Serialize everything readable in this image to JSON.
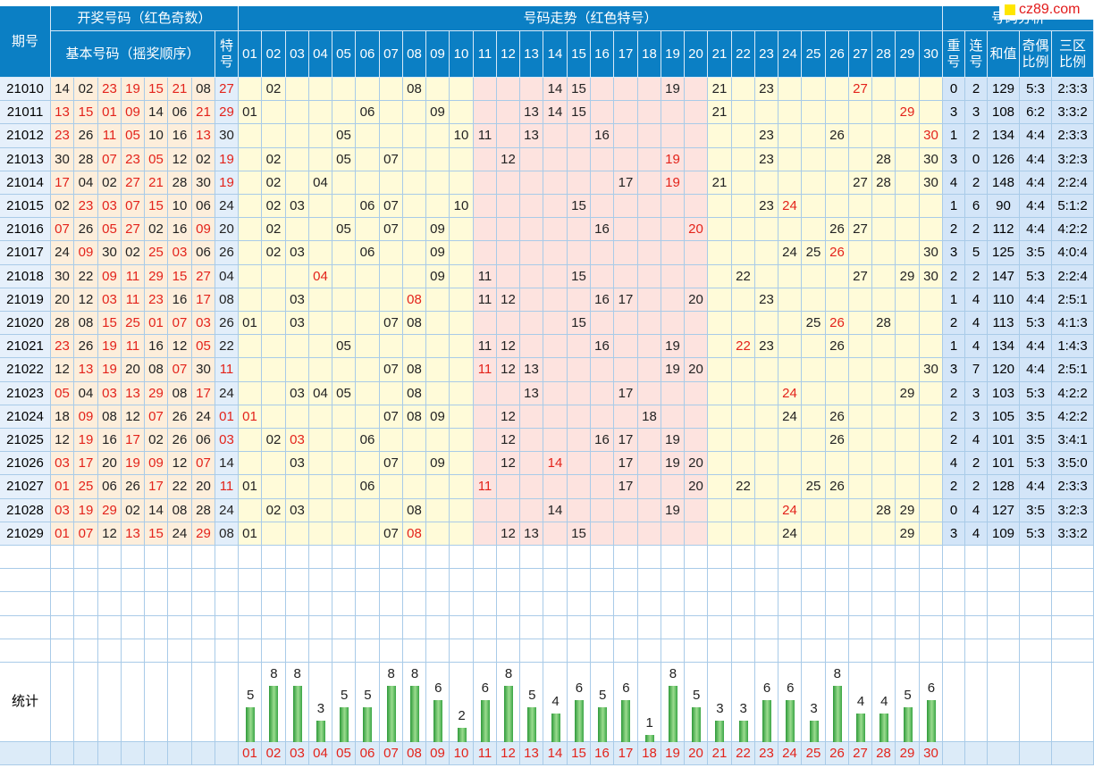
{
  "header": {
    "period": "期号",
    "draw": "开奖号码（红色奇数）",
    "basic": "基本号码（摇奖顺序）",
    "special": "特号",
    "trend": "号码走势（红色特号）",
    "analysis": "号码分析",
    "repeat": "重号",
    "consecutive": "连号",
    "sum": "和值",
    "odd_even": "奇偶比例",
    "zones": "三区比例",
    "numbers": [
      "01",
      "02",
      "03",
      "04",
      "05",
      "06",
      "07",
      "08",
      "09",
      "10",
      "11",
      "12",
      "13",
      "14",
      "15",
      "16",
      "17",
      "18",
      "19",
      "20",
      "21",
      "22",
      "23",
      "24",
      "25",
      "26",
      "27",
      "28",
      "29",
      "30"
    ]
  },
  "rows": [
    {
      "period": "21010",
      "basic": [
        "14",
        "02",
        "23",
        "19",
        "15",
        "21",
        "08"
      ],
      "special": "27",
      "repeat": 0,
      "consecutive": 2,
      "sum": 129,
      "odd_even": "5:3",
      "zones": "2:3:3"
    },
    {
      "period": "21011",
      "basic": [
        "13",
        "15",
        "01",
        "09",
        "14",
        "06",
        "21"
      ],
      "special": "29",
      "repeat": 3,
      "consecutive": 3,
      "sum": 108,
      "odd_even": "6:2",
      "zones": "3:3:2"
    },
    {
      "period": "21012",
      "basic": [
        "23",
        "26",
        "11",
        "05",
        "10",
        "16",
        "13"
      ],
      "special": "30",
      "repeat": 1,
      "consecutive": 2,
      "sum": 134,
      "odd_even": "4:4",
      "zones": "2:3:3"
    },
    {
      "period": "21013",
      "basic": [
        "30",
        "28",
        "07",
        "23",
        "05",
        "12",
        "02"
      ],
      "special": "19",
      "repeat": 3,
      "consecutive": 0,
      "sum": 126,
      "odd_even": "4:4",
      "zones": "3:2:3"
    },
    {
      "period": "21014",
      "basic": [
        "17",
        "04",
        "02",
        "27",
        "21",
        "28",
        "30"
      ],
      "special": "19",
      "repeat": 4,
      "consecutive": 2,
      "sum": 148,
      "odd_even": "4:4",
      "zones": "2:2:4"
    },
    {
      "period": "21015",
      "basic": [
        "02",
        "23",
        "03",
        "07",
        "15",
        "10",
        "06"
      ],
      "special": "24",
      "repeat": 1,
      "consecutive": 6,
      "sum": 90,
      "odd_even": "4:4",
      "zones": "5:1:2"
    },
    {
      "period": "21016",
      "basic": [
        "07",
        "26",
        "05",
        "27",
        "02",
        "16",
        "09"
      ],
      "special": "20",
      "repeat": 2,
      "consecutive": 2,
      "sum": 112,
      "odd_even": "4:4",
      "zones": "4:2:2"
    },
    {
      "period": "21017",
      "basic": [
        "24",
        "09",
        "30",
        "02",
        "25",
        "03",
        "06"
      ],
      "special": "26",
      "repeat": 3,
      "consecutive": 5,
      "sum": 125,
      "odd_even": "3:5",
      "zones": "4:0:4"
    },
    {
      "period": "21018",
      "basic": [
        "30",
        "22",
        "09",
        "11",
        "29",
        "15",
        "27"
      ],
      "special": "04",
      "repeat": 2,
      "consecutive": 2,
      "sum": 147,
      "odd_even": "5:3",
      "zones": "2:2:4"
    },
    {
      "period": "21019",
      "basic": [
        "20",
        "12",
        "03",
        "11",
        "23",
        "16",
        "17"
      ],
      "special": "08",
      "repeat": 1,
      "consecutive": 4,
      "sum": 110,
      "odd_even": "4:4",
      "zones": "2:5:1"
    },
    {
      "period": "21020",
      "basic": [
        "28",
        "08",
        "15",
        "25",
        "01",
        "07",
        "03"
      ],
      "special": "26",
      "repeat": 2,
      "consecutive": 4,
      "sum": 113,
      "odd_even": "5:3",
      "zones": "4:1:3"
    },
    {
      "period": "21021",
      "basic": [
        "23",
        "26",
        "19",
        "11",
        "16",
        "12",
        "05"
      ],
      "special": "22",
      "repeat": 1,
      "consecutive": 4,
      "sum": 134,
      "odd_even": "4:4",
      "zones": "1:4:3"
    },
    {
      "period": "21022",
      "basic": [
        "12",
        "13",
        "19",
        "20",
        "08",
        "07",
        "30"
      ],
      "special": "11",
      "repeat": 3,
      "consecutive": 7,
      "sum": 120,
      "odd_even": "4:4",
      "zones": "2:5:1"
    },
    {
      "period": "21023",
      "basic": [
        "05",
        "04",
        "03",
        "13",
        "29",
        "08",
        "17"
      ],
      "special": "24",
      "repeat": 2,
      "consecutive": 3,
      "sum": 103,
      "odd_even": "5:3",
      "zones": "4:2:2"
    },
    {
      "period": "21024",
      "basic": [
        "18",
        "09",
        "08",
        "12",
        "07",
        "26",
        "24"
      ],
      "special": "01",
      "repeat": 2,
      "consecutive": 3,
      "sum": 105,
      "odd_even": "3:5",
      "zones": "4:2:2"
    },
    {
      "period": "21025",
      "basic": [
        "12",
        "19",
        "16",
        "17",
        "02",
        "26",
        "06"
      ],
      "special": "03",
      "repeat": 2,
      "consecutive": 4,
      "sum": 101,
      "odd_even": "3:5",
      "zones": "3:4:1"
    },
    {
      "period": "21026",
      "basic": [
        "03",
        "17",
        "20",
        "19",
        "09",
        "12",
        "07"
      ],
      "special": "14",
      "repeat": 4,
      "consecutive": 2,
      "sum": 101,
      "odd_even": "5:3",
      "zones": "3:5:0"
    },
    {
      "period": "21027",
      "basic": [
        "01",
        "25",
        "06",
        "26",
        "17",
        "22",
        "20"
      ],
      "special": "11",
      "repeat": 2,
      "consecutive": 2,
      "sum": 128,
      "odd_even": "4:4",
      "zones": "2:3:3"
    },
    {
      "period": "21028",
      "basic": [
        "03",
        "19",
        "29",
        "02",
        "14",
        "08",
        "28"
      ],
      "special": "24",
      "repeat": 0,
      "consecutive": 4,
      "sum": 127,
      "odd_even": "3:5",
      "zones": "3:2:3"
    },
    {
      "period": "21029",
      "basic": [
        "01",
        "07",
        "12",
        "13",
        "15",
        "24",
        "29"
      ],
      "special": "08",
      "repeat": 3,
      "consecutive": 4,
      "sum": 109,
      "odd_even": "5:3",
      "zones": "3:3:2"
    }
  ],
  "stats": {
    "label": "统计",
    "counts": [
      5,
      8,
      8,
      3,
      5,
      5,
      8,
      8,
      6,
      2,
      6,
      8,
      5,
      4,
      6,
      5,
      6,
      1,
      8,
      5,
      3,
      3,
      6,
      6,
      3,
      8,
      4,
      4,
      5,
      6
    ]
  },
  "watermark": "cz89.com"
}
